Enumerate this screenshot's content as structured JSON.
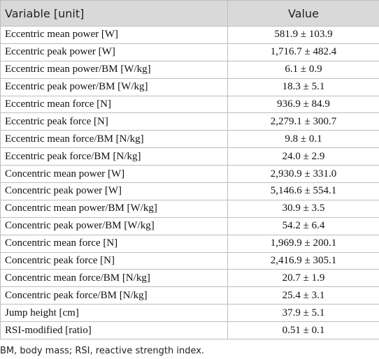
{
  "table": {
    "header": [
      "Variable [unit]",
      "Value"
    ],
    "rows": [
      [
        "Eccentric mean power [W]",
        "581.9 ± 103.9"
      ],
      [
        "Eccentric peak power [W]",
        "1,716.7 ± 482.4"
      ],
      [
        "Eccentric mean power/BM [W/kg]",
        "6.1 ± 0.9"
      ],
      [
        "Eccentric peak power/BM [W/kg]",
        "18.3 ± 5.1"
      ],
      [
        "Eccentric mean force [N]",
        "936.9 ± 84.9"
      ],
      [
        "Eccentric peak force [N]",
        "2,279.1 ± 300.7"
      ],
      [
        "Eccentric mean force/BM [N/kg]",
        "9.8 ± 0.1"
      ],
      [
        "Eccentric peak force/BM [N/kg]",
        "24.0 ± 2.9"
      ],
      [
        "Concentric mean power [W]",
        "2,930.9 ± 331.0"
      ],
      [
        "Concentric peak power [W]",
        "5,146.6 ± 554.1"
      ],
      [
        "Concentric mean power/BM [W/kg]",
        "30.9 ± 3.5"
      ],
      [
        "Concentric peak power/BM [W/kg]",
        "54.2 ± 6.4"
      ],
      [
        "Concentric mean force [N]",
        "1,969.9 ± 200.1"
      ],
      [
        "Concentric peak force [N]",
        "2,416.9 ± 305.1"
      ],
      [
        "Concentric mean force/BM [N/kg]",
        "20.7 ± 1.9"
      ],
      [
        "Concentric peak force/BM [N/kg]",
        "25.4 ± 3.1"
      ],
      [
        "Jump height [cm]",
        "37.9 ± 5.1"
      ],
      [
        "RSI-modified [ratio]",
        "0.51 ± 0.1"
      ]
    ],
    "footnote": "BM, body mass; RSI, reactive strength index."
  }
}
